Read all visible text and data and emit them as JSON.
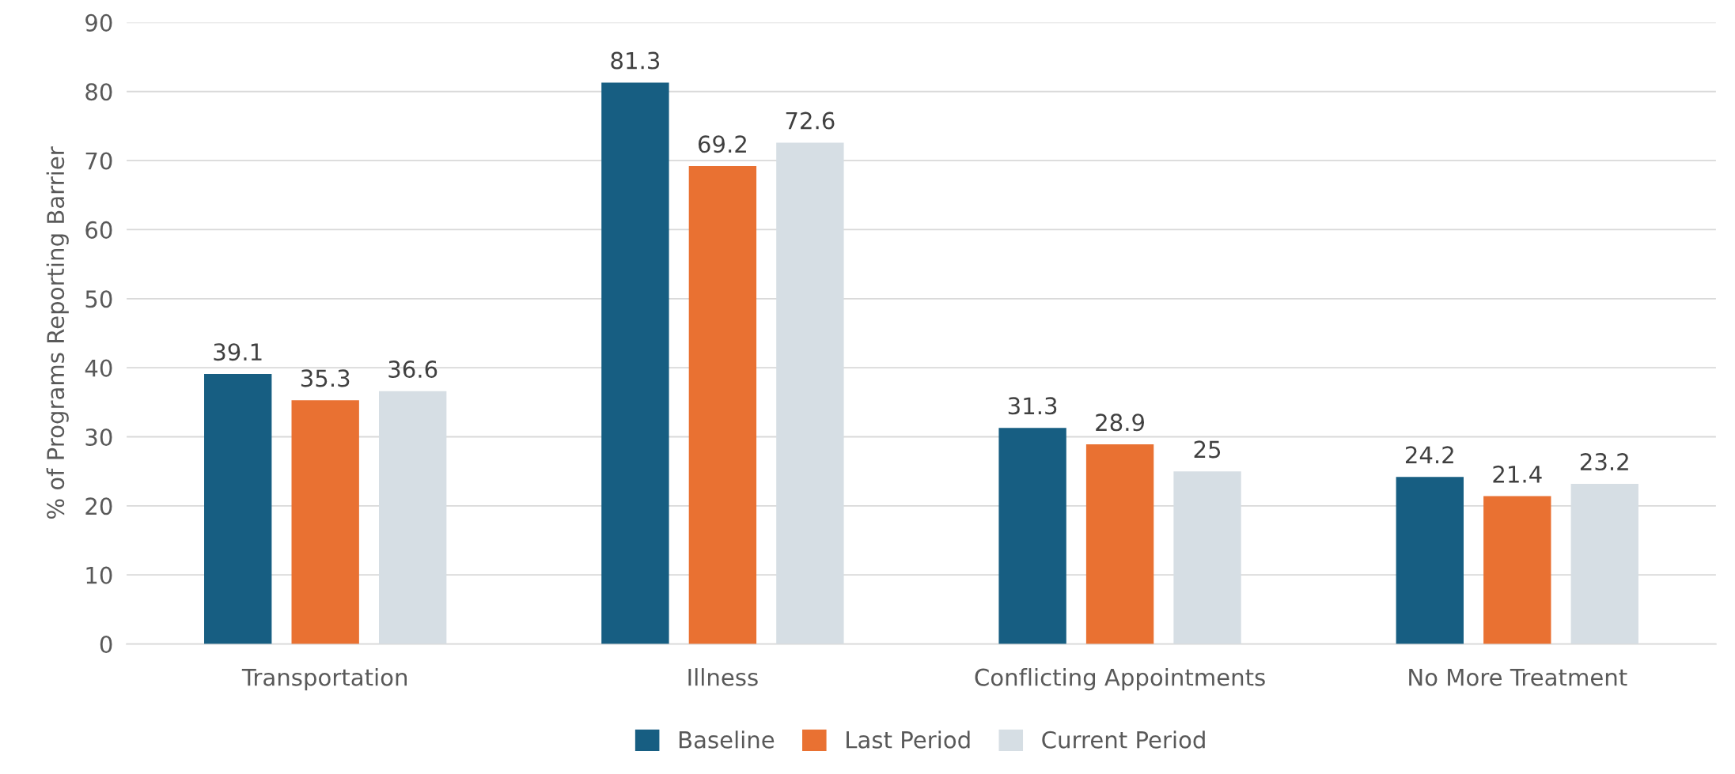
{
  "chart_data": {
    "type": "bar",
    "ylabel": "% of Programs Reporting Barrier",
    "categories": [
      "Transportation",
      "Illness",
      "Conflicting Appointments",
      "No More Treatment"
    ],
    "series": [
      {
        "name": "Baseline",
        "color": "#175e82",
        "values": [
          39.1,
          81.3,
          31.3,
          24.2
        ]
      },
      {
        "name": "Last Period",
        "color": "#e97132",
        "values": [
          35.3,
          69.2,
          28.9,
          21.4
        ]
      },
      {
        "name": "Current Period",
        "color": "#d6dee4",
        "values": [
          36.6,
          72.6,
          25,
          23.2
        ]
      }
    ],
    "ylim": [
      0,
      90
    ],
    "yticks": [
      0,
      10,
      20,
      30,
      40,
      50,
      60,
      70,
      80,
      90
    ],
    "grid": "y",
    "legend": "bottom",
    "data_labels": true
  }
}
